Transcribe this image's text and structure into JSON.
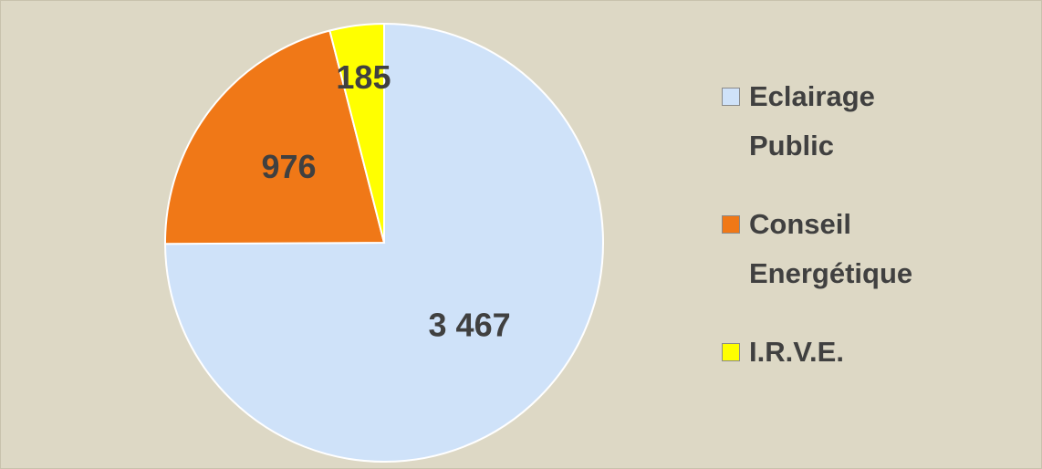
{
  "chart_data": {
    "type": "pie",
    "categories": [
      "Eclairage Public",
      "Conseil Energétique",
      "I.R.V.E."
    ],
    "values": [
      3467,
      976,
      185
    ],
    "value_labels": [
      "3 467",
      "976",
      "185"
    ],
    "colors": [
      "#cfe2f9",
      "#f07817",
      "#ffff00"
    ],
    "legend": "right"
  }
}
